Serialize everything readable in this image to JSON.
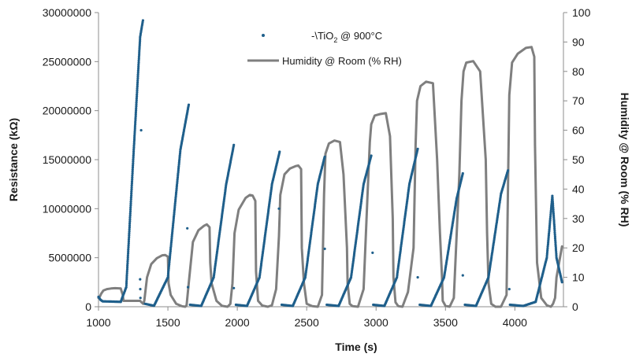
{
  "chart_data": {
    "type": "scatter+line",
    "xlabel": "Time (s)",
    "ylabel_left": "Resistance (kΩ)",
    "ylabel_right": "Humidity @ Room (% RH)",
    "xlim": [
      1000,
      4350
    ],
    "ylim_left": [
      0,
      30000000
    ],
    "ylim_right": [
      0,
      100
    ],
    "x_ticks": [
      1000,
      1500,
      2000,
      2500,
      3000,
      3500,
      4000
    ],
    "x_tick_labels": [
      "1000",
      "1500",
      "2000",
      "2500",
      "3000",
      "3500",
      "4000"
    ],
    "y_left_ticks": [
      0,
      5000000,
      10000000,
      15000000,
      20000000,
      25000000,
      30000000
    ],
    "y_left_tick_labels": [
      "0",
      "5000000",
      "10000000",
      "15000000",
      "20000000",
      "25000000",
      "30000000"
    ],
    "y_right_ticks": [
      0,
      10,
      20,
      30,
      40,
      50,
      60,
      70,
      80,
      90,
      100
    ],
    "y_right_tick_labels": [
      "0",
      "10",
      "20",
      "30",
      "40",
      "50",
      "60",
      "70",
      "80",
      "90",
      "100"
    ],
    "grid": false,
    "legend_placement": "top-center",
    "legend": {
      "resistance_prefix": "-\\TiO",
      "resistance_sub": "2",
      "resistance_suffix": " @ 900°C",
      "humidity": "Humidity @ Room (% RH)"
    },
    "series": [
      {
        "axis": "left",
        "marker": "dot",
        "color": "#1f5f8b",
        "baseline_points": [
          [
            1000,
            1000000
          ],
          [
            1015,
            700000
          ],
          [
            1030,
            550000
          ],
          [
            1160,
            500000
          ]
        ],
        "isolated_points": [
          [
            1307,
            18000000
          ],
          [
            1300,
            2800000
          ],
          [
            1301,
            1800000
          ],
          [
            1302,
            900000
          ],
          [
            1640,
            8000000
          ],
          [
            1645,
            2000000
          ],
          [
            1975,
            1900000
          ],
          [
            2300,
            10000000
          ],
          [
            2630,
            5900000
          ],
          [
            2975,
            5500000
          ],
          [
            3300,
            3000000
          ],
          [
            3625,
            3200000
          ],
          [
            3960,
            1800000
          ]
        ],
        "cycles": [
          {
            "x": [
              1160,
              1200,
              1250,
              1300,
              1320
            ],
            "y": [
              500000,
              2000000,
              15000000,
              27500000,
              29200000
            ]
          },
          {
            "x": [
              1335,
              1400,
              1500,
              1590,
              1650
            ],
            "y": [
              300000,
              100000,
              3000000,
              16000000,
              20600000
            ]
          },
          {
            "x": [
              1660,
              1740,
              1830,
              1920,
              1975
            ],
            "y": [
              200000,
              80000,
              3000000,
              12500000,
              16500000
            ]
          },
          {
            "x": [
              1990,
              2070,
              2160,
              2250,
              2305
            ],
            "y": [
              200000,
              80000,
              3000000,
              12500000,
              15800000
            ]
          },
          {
            "x": [
              2320,
              2400,
              2490,
              2580,
              2630
            ],
            "y": [
              200000,
              80000,
              3000000,
              12500000,
              15300000
            ]
          },
          {
            "x": [
              2645,
              2730,
              2820,
              2910,
              2965
            ],
            "y": [
              200000,
              80000,
              3000000,
              12500000,
              15400000
            ]
          },
          {
            "x": [
              2980,
              3060,
              3150,
              3240,
              3300
            ],
            "y": [
              200000,
              80000,
              3000000,
              12500000,
              16100000
            ]
          },
          {
            "x": [
              3315,
              3395,
              3490,
              3580,
              3625
            ],
            "y": [
              200000,
              80000,
              3000000,
              11000000,
              13600000
            ]
          },
          {
            "x": [
              3640,
              3720,
              3810,
              3900,
              3950
            ],
            "y": [
              200000,
              80000,
              3000000,
              11500000,
              13900000
            ]
          },
          {
            "x": [
              3965,
              4060,
              4150,
              4230,
              4270,
              4300,
              4340
            ],
            "y": [
              200000,
              80000,
              500000,
              5000000,
              11300000,
              5000000,
              2500000
            ]
          }
        ]
      },
      {
        "axis": "right",
        "line": true,
        "color": "#7f7f7f",
        "x": [
          1000,
          1010,
          1020,
          1035,
          1060,
          1090,
          1120,
          1160,
          1175,
          1180,
          1300,
          1310,
          1322,
          1330,
          1350,
          1380,
          1420,
          1460,
          1480,
          1500,
          1505,
          1520,
          1560,
          1600,
          1625,
          1635,
          1650,
          1680,
          1720,
          1760,
          1780,
          1800,
          1805,
          1815,
          1850,
          1890,
          1930,
          1950,
          1965,
          1980,
          2010,
          2060,
          2090,
          2110,
          2130,
          2135,
          2150,
          2180,
          2220,
          2250,
          2280,
          2300,
          2310,
          2340,
          2380,
          2420,
          2440,
          2460,
          2465,
          2480,
          2500,
          2540,
          2580,
          2610,
          2625,
          2635,
          2660,
          2700,
          2740,
          2765,
          2790,
          2795,
          2810,
          2830,
          2870,
          2910,
          2940,
          2955,
          2965,
          2990,
          3030,
          3070,
          3100,
          3120,
          3125,
          3140,
          3160,
          3190,
          3230,
          3270,
          3285,
          3295,
          3320,
          3360,
          3410,
          3440,
          3460,
          3475,
          3480,
          3500,
          3530,
          3560,
          3600,
          3615,
          3630,
          3650,
          3700,
          3750,
          3790,
          3800,
          3810,
          3830,
          3860,
          3900,
          3940,
          3950,
          3960,
          3980,
          4020,
          4080,
          4120,
          4140,
          4145,
          4160,
          4190,
          4230,
          4260,
          4275,
          4290,
          4300,
          4330,
          4340
        ],
        "y": [
          3,
          3.5,
          4.5,
          5.5,
          6,
          6.2,
          6.3,
          6.2,
          4,
          2,
          2,
          1.5,
          1,
          2,
          10,
          14.5,
          16.5,
          17.5,
          17.6,
          17,
          8,
          4,
          1,
          0.2,
          0,
          0.5,
          8,
          22,
          26,
          27.5,
          28,
          27,
          15,
          8,
          2,
          0.3,
          0,
          1,
          8,
          25,
          33,
          37,
          38,
          37.8,
          36,
          12,
          2,
          0.4,
          0,
          0.5,
          6,
          24,
          38,
          45,
          47,
          47.8,
          48,
          46.8,
          20,
          8,
          1,
          0.2,
          0,
          4,
          38,
          52,
          55.5,
          56.5,
          56,
          45,
          20,
          8,
          1,
          0.2,
          0,
          6,
          40,
          56,
          62,
          65,
          65.5,
          65.8,
          58,
          30,
          10,
          1.5,
          0.2,
          0,
          5,
          20,
          55,
          70,
          75,
          76.5,
          76,
          50,
          25,
          10,
          2,
          0.3,
          0,
          3,
          45,
          70,
          80,
          83,
          83.5,
          80,
          50,
          25,
          8,
          1,
          0,
          0,
          4,
          40,
          72,
          83,
          86,
          88,
          88.3,
          85,
          55,
          15,
          3,
          0.5,
          0,
          1,
          3,
          10,
          18,
          20.5
        ]
      }
    ]
  }
}
